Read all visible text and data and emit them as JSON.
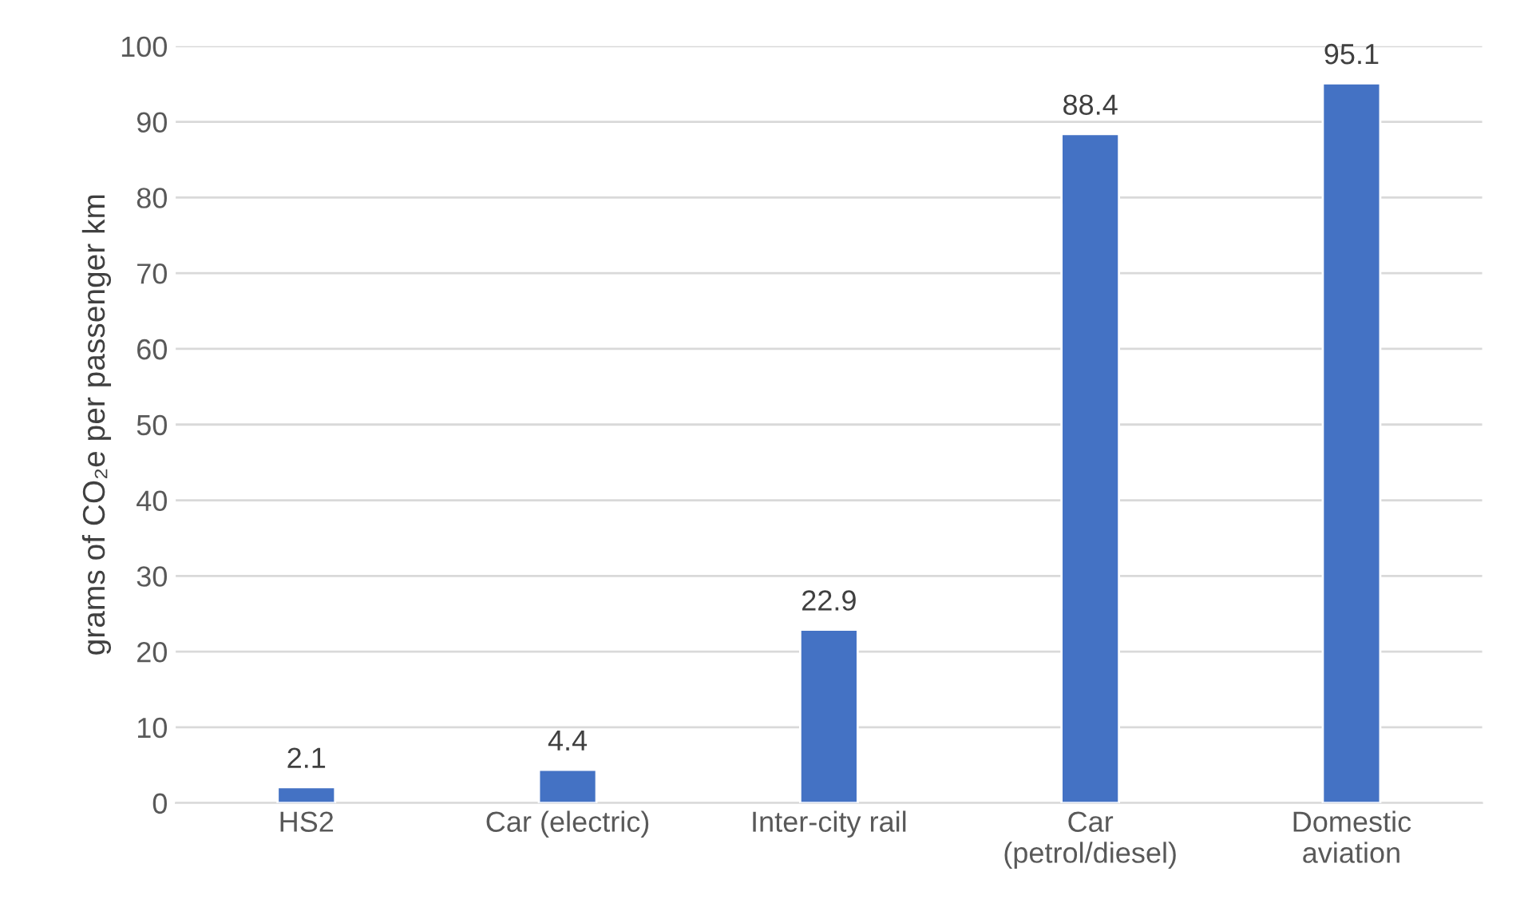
{
  "chart_data": {
    "type": "bar",
    "ylabel": "grams of CO₂e per passenger km",
    "categories": [
      "HS2",
      "Car (electric)",
      "Inter-city rail",
      "Car\n(petrol/diesel)",
      "Domestic\naviation"
    ],
    "values": [
      2.1,
      4.4,
      22.9,
      88.4,
      95.1
    ],
    "color": "#4472c4",
    "ylim": [
      0,
      100
    ],
    "yticks": [
      0,
      10,
      20,
      30,
      40,
      50,
      60,
      70,
      80,
      90,
      100
    ],
    "grid": "y",
    "data_labels": true
  }
}
